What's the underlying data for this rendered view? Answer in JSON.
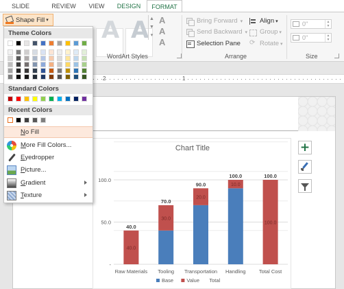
{
  "tabs": [
    "SLIDE SHOW",
    "REVIEW",
    "VIEW",
    "DESIGN",
    "FORMAT"
  ],
  "ribbon": {
    "shape_fill_label": "Shape Fill",
    "wordart_styles_label": "WordArt Styles",
    "wordart_glyph": "A",
    "arrange_label": "Arrange",
    "size_label": "Size",
    "bring_forward": "Bring Forward",
    "send_backward": "Send Backward",
    "selection_pane": "Selection Pane",
    "align": "Align",
    "group": "Group",
    "rotate": "Rotate",
    "height_value": "0\"",
    "width_value": "0\""
  },
  "ruler": {
    "numbers": [
      "2",
      "1"
    ]
  },
  "menu": {
    "theme_colors_label": "Theme Colors",
    "standard_colors_label": "Standard Colors",
    "recent_colors_label": "Recent Colors",
    "no_fill": "No Fill",
    "more_fill_colors": "More Fill Colors...",
    "eyedropper": "Eyedropper",
    "picture": "Picture...",
    "gradient": "Gradient",
    "texture": "Texture",
    "theme_top_row": [
      "#ffffff",
      "#000000",
      "#e7e6e6",
      "#44546a",
      "#4472c4",
      "#ed7d31",
      "#a5a5a5",
      "#ffc000",
      "#5b9bd5",
      "#70ad47"
    ],
    "theme_shades": [
      [
        "#f2f2f2",
        "#7f7f7f",
        "#d0cece",
        "#d6dce4",
        "#d9e2f3",
        "#fbe5d5",
        "#ededed",
        "#fff2cc",
        "#deebf6",
        "#e2efd9"
      ],
      [
        "#d8d8d8",
        "#595959",
        "#aeaaaa",
        "#adb9ca",
        "#b4c6e7",
        "#f7cbac",
        "#dbdbdb",
        "#fee599",
        "#bdd7ee",
        "#c5e0b3"
      ],
      [
        "#bfbfbf",
        "#3f3f3f",
        "#757070",
        "#8496b0",
        "#8eaadb",
        "#f4b183",
        "#c9c9c9",
        "#ffd965",
        "#9cc3e5",
        "#a8d08d"
      ],
      [
        "#a5a5a5",
        "#262626",
        "#3a3838",
        "#323f4f",
        "#2f5496",
        "#c55a11",
        "#7b7b7b",
        "#bf9000",
        "#2e75b5",
        "#538135"
      ],
      [
        "#7f7f7f",
        "#0c0c0c",
        "#171616",
        "#222a35",
        "#1f3864",
        "#833c0b",
        "#525252",
        "#7f6000",
        "#1e4e79",
        "#375623"
      ]
    ],
    "standard": [
      "#c00000",
      "#ff0000",
      "#ffc000",
      "#ffff00",
      "#92d050",
      "#00b050",
      "#00b0f0",
      "#0070c0",
      "#002060",
      "#7030a0"
    ],
    "recent": [
      "#ffffff",
      "#000000",
      "#404040",
      "#595959",
      "#808080"
    ]
  },
  "chart_data": {
    "type": "bar",
    "title": "Chart Title",
    "categories": [
      "Raw Materials",
      "Tooling",
      "Transportation",
      "Handling",
      "Total Cost"
    ],
    "series": [
      {
        "name": "Base",
        "values": [
          0,
          40,
          70,
          90,
          0
        ],
        "color": "#4a7ebb"
      },
      {
        "name": "Value",
        "values": [
          40,
          30,
          20,
          10,
          100
        ],
        "color": "#c0504d"
      },
      {
        "name": "Total",
        "values": [
          40,
          70,
          90,
          100,
          100
        ]
      }
    ],
    "value_labels": [
      "40.0",
      "30.0",
      "20.0",
      "10.0",
      "100.0"
    ],
    "total_labels": [
      "40.0",
      "70.0",
      "90.0",
      "100.0",
      "100.0"
    ],
    "y_ticks": [
      "100.0",
      "50.0",
      "-"
    ],
    "y_tick_values": [
      100,
      50,
      0
    ],
    "ylim": [
      0,
      100
    ],
    "legend_position": "bottom",
    "grid": true
  }
}
